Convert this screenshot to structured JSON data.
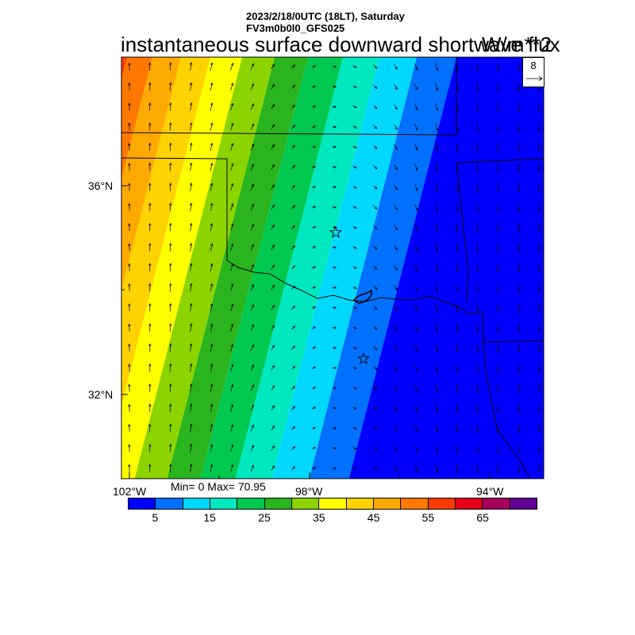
{
  "header": {
    "datetime": "2023/2/18/0UTC (18LT), Saturday",
    "model": "FV3m0b0l0_GFS025",
    "variable": "instantaneous surface downward shortwave flux",
    "units": "W/m**2"
  },
  "axes": {
    "lat_labels": [
      "36°N",
      "32°N"
    ],
    "lon_labels": [
      "102°W",
      "98°W",
      "94°W"
    ]
  },
  "stats": {
    "text": "Min= 0 Max= 70.95",
    "min": 0,
    "max": 70.95
  },
  "colorbar": {
    "colors": [
      "#0000ff",
      "#0070ff",
      "#00d8ff",
      "#00e8c0",
      "#00c850",
      "#2ab41e",
      "#8cd400",
      "#ffff00",
      "#ffd200",
      "#ffaa00",
      "#ff7800",
      "#ff3c00",
      "#e60019",
      "#a5005a",
      "#640096"
    ],
    "labels": [
      "5",
      "15",
      "25",
      "35",
      "45",
      "55",
      "65"
    ]
  },
  "vector_reference": {
    "value": "8"
  },
  "markers": [
    "star",
    "star"
  ]
}
